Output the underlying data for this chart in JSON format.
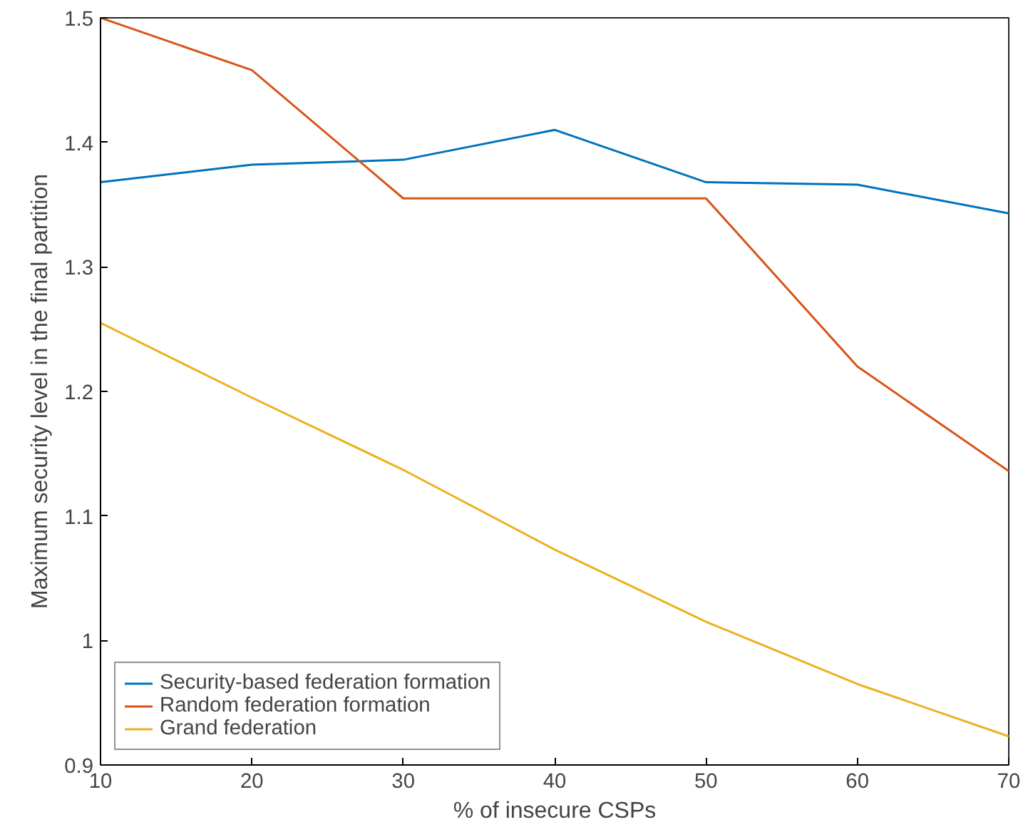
{
  "chart_data": {
    "type": "line",
    "xlabel": "% of insecure CSPs",
    "ylabel": "Maximum security level in the final partition",
    "x": [
      10,
      20,
      30,
      40,
      50,
      60,
      70
    ],
    "series": [
      {
        "name": "Security-based federation formation",
        "color": "#0072bd",
        "values": [
          1.368,
          1.382,
          1.386,
          1.41,
          1.368,
          1.366,
          1.343
        ]
      },
      {
        "name": "Random federation formation",
        "color": "#d95319",
        "values": [
          1.5,
          1.458,
          1.355,
          1.355,
          1.355,
          1.22,
          1.136
        ]
      },
      {
        "name": "Grand federation",
        "color": "#edb120",
        "values": [
          1.255,
          1.195,
          1.137,
          1.073,
          1.015,
          0.965,
          0.923
        ]
      }
    ],
    "xlim": [
      10,
      70
    ],
    "ylim": [
      0.9,
      1.5
    ],
    "xticks": [
      10,
      20,
      30,
      40,
      50,
      60,
      70
    ],
    "yticks": [
      0.9,
      1,
      1.1,
      1.2,
      1.3,
      1.4,
      1.5
    ],
    "grid": false,
    "legend": "bottom left",
    "marker": "none",
    "line_style": "solid"
  }
}
